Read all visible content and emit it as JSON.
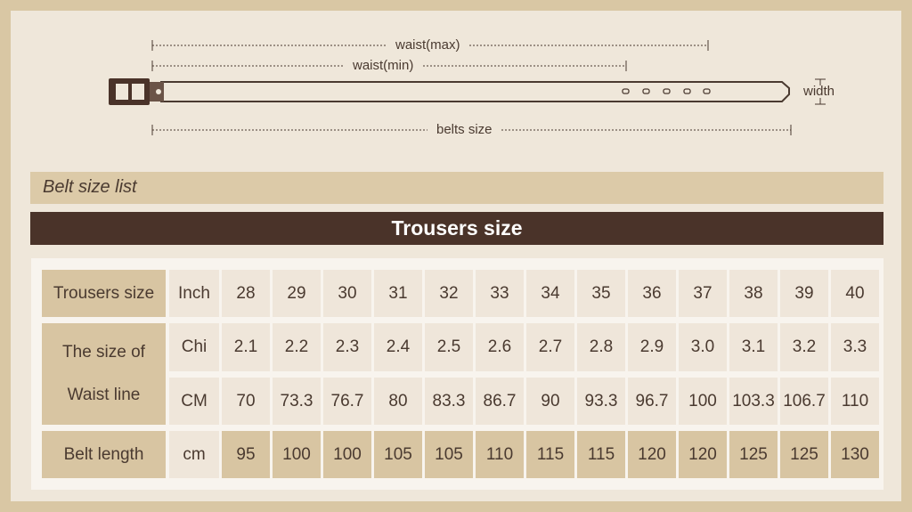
{
  "diagram": {
    "waist_max": "waist(max)",
    "waist_min": "waist(min)",
    "belts_size": "belts size",
    "width": "width"
  },
  "list_title": "Belt size list",
  "table_title": "Trousers size",
  "table": {
    "row1": {
      "label": "Trousers size",
      "unit": "Inch",
      "values": [
        "28",
        "29",
        "30",
        "31",
        "32",
        "33",
        "34",
        "35",
        "36",
        "37",
        "38",
        "39",
        "40"
      ]
    },
    "waist": {
      "label_line1": "The size of",
      "label_line2": "Waist line",
      "chi": {
        "unit": "Chi",
        "values": [
          "2.1",
          "2.2",
          "2.3",
          "2.4",
          "2.5",
          "2.6",
          "2.7",
          "2.8",
          "2.9",
          "3.0",
          "3.1",
          "3.2",
          "3.3"
        ]
      },
      "cm": {
        "unit": "CM",
        "values": [
          "70",
          "73.3",
          "76.7",
          "80",
          "83.3",
          "86.7",
          "90",
          "93.3",
          "96.7",
          "100",
          "103.3",
          "106.7",
          "110"
        ]
      }
    },
    "belt": {
      "label": "Belt length",
      "unit": "cm",
      "values": [
        "95",
        "100",
        "100",
        "105",
        "105",
        "110",
        "115",
        "115",
        "120",
        "120",
        "125",
        "125",
        "130"
      ]
    }
  },
  "colors": {
    "frame": "#d9c7a4",
    "header_cell": "#d8c5a2",
    "dark_bar": "#4a3329",
    "light_cell": "#efe6da"
  }
}
